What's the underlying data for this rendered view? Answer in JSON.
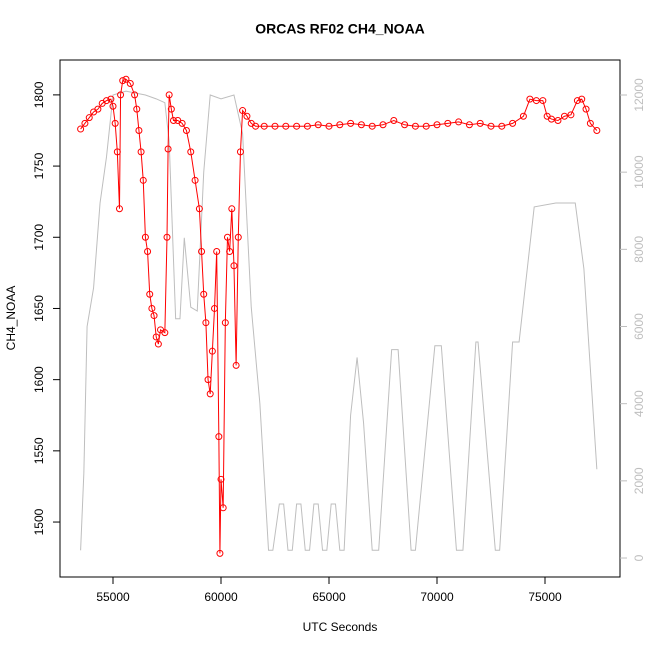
{
  "chart_data": {
    "type": "line",
    "title": "ORCAS RF02 CH4_NOAA",
    "x_label": "UTC Seconds",
    "y_label": "CH4_NOAA",
    "xlim": [
      52546,
      78472
    ],
    "xticks": [
      55000,
      60000,
      65000,
      70000,
      75000
    ],
    "ylim": [
      1461.4,
      1824.5
    ],
    "yticks": [
      1500,
      1550,
      1600,
      1650,
      1700,
      1750,
      1800
    ],
    "y2lim": [
      -492,
      12907
    ],
    "y2ticks": [
      0,
      2000,
      4000,
      6000,
      8000,
      10000,
      12000
    ],
    "series": [
      {
        "color": "#ff0000",
        "marker": "circle",
        "x": [
          53500,
          53700,
          53900,
          54100,
          54300,
          54500,
          54700,
          54900,
          55000,
          55100,
          55200,
          55300,
          55350,
          55450,
          55600,
          55800,
          56000,
          56100,
          56200,
          56300,
          56400,
          56500,
          56600,
          56700,
          56800,
          56900,
          57000,
          57100,
          57200,
          57400,
          57500,
          57550,
          57600,
          57700,
          57800,
          58000,
          58200,
          58400,
          58600,
          58800,
          59000,
          59100,
          59200,
          59300,
          59400,
          59500,
          59600,
          59700,
          59800,
          59900,
          59950,
          60000,
          60100,
          60200,
          60300,
          60400,
          60500,
          60600,
          60700,
          60800,
          60900,
          61000,
          61200,
          61400,
          61600,
          62000,
          62500,
          63000,
          63500,
          64000,
          64500,
          65000,
          65500,
          66000,
          66500,
          67000,
          67500,
          68000,
          68500,
          69000,
          69500,
          70000,
          70500,
          71000,
          71500,
          72000,
          72500,
          73000,
          73500,
          74000,
          74300,
          74600,
          74900,
          75100,
          75300,
          75600,
          75900,
          76200,
          76500,
          76700,
          76900,
          77100,
          77400
        ],
        "values": [
          1776,
          1780,
          1784,
          1788,
          1790,
          1794,
          1796,
          1797,
          1792,
          1780,
          1760,
          1720,
          1800,
          1810,
          1811,
          1808,
          1800,
          1790,
          1775,
          1760,
          1740,
          1700,
          1690,
          1660,
          1650,
          1645,
          1630,
          1625,
          1635,
          1633,
          1700,
          1762,
          1800,
          1790,
          1782,
          1782,
          1780,
          1775,
          1760,
          1740,
          1720,
          1690,
          1660,
          1640,
          1600,
          1590,
          1620,
          1650,
          1690,
          1560,
          1478,
          1530,
          1510,
          1640,
          1700,
          1690,
          1720,
          1680,
          1610,
          1700,
          1760,
          1789,
          1785,
          1780,
          1778,
          1778,
          1778,
          1778,
          1778,
          1778,
          1779,
          1778,
          1779,
          1780,
          1779,
          1778,
          1779,
          1782,
          1779,
          1778,
          1778,
          1779,
          1780,
          1781,
          1779,
          1780,
          1778,
          1778,
          1780,
          1785,
          1797,
          1796,
          1796,
          1785,
          1783,
          1782,
          1785,
          1786,
          1796,
          1797,
          1790,
          1780,
          1775
        ]
      },
      {
        "color": "#bebebe",
        "axis": "y2",
        "x": [
          53500,
          53650,
          53800,
          54100,
          54400,
          54700,
          55000,
          55600,
          56500,
          57000,
          57400,
          57600,
          57900,
          58100,
          58300,
          58600,
          58900,
          59200,
          59500,
          60000,
          60600,
          61000,
          61400,
          61800,
          62200,
          62400,
          62700,
          62900,
          63100,
          63300,
          63500,
          63700,
          63900,
          64100,
          64300,
          64500,
          64700,
          64900,
          65100,
          65300,
          65500,
          65700,
          66000,
          66300,
          66600,
          67000,
          67300,
          67900,
          68200,
          68800,
          69000,
          69900,
          70200,
          70900,
          71200,
          71800,
          71900,
          72700,
          72900,
          73500,
          73800,
          74500,
          75500,
          76000,
          76400,
          76800,
          77400
        ],
        "values": [
          200,
          2200,
          6000,
          7000,
          9200,
          10400,
          12000,
          12100,
          12000,
          11900,
          11800,
          10800,
          6200,
          6200,
          8300,
          6500,
          6400,
          10000,
          12000,
          11900,
          12000,
          11000,
          6500,
          4000,
          200,
          200,
          1400,
          1400,
          200,
          200,
          1400,
          1400,
          200,
          200,
          1400,
          1400,
          200,
          200,
          1400,
          1400,
          200,
          200,
          3700,
          5200,
          3500,
          200,
          200,
          5400,
          5400,
          200,
          200,
          5500,
          5500,
          200,
          200,
          5600,
          5600,
          200,
          200,
          5600,
          5600,
          9100,
          9200,
          9200,
          9200,
          7500,
          2300
        ]
      }
    ]
  }
}
